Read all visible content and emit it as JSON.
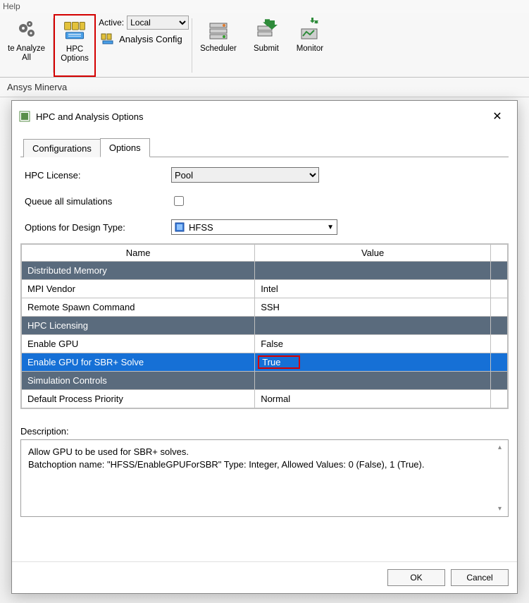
{
  "colors": {
    "highlight_border": "#d40000",
    "section_header_bg": "#5a6b7d",
    "section_header_text": "#ffffff",
    "selected_row_bg": "#1670d6",
    "selected_row_text": "#ffffff",
    "table_border": "#bfbfbf"
  },
  "menu_hint": "Help",
  "ribbon": {
    "analyze_all": "te Analyze\nAll",
    "hpc_options": "HPC\nOptions",
    "active_label": "Active:",
    "active_value": "Local",
    "analysis_config": "Analysis Config",
    "scheduler": "Scheduler",
    "submit": "Submit",
    "monitor": "Monitor"
  },
  "subtitle": "Ansys Minerva",
  "modal": {
    "title": "HPC and Analysis Options",
    "tabs": [
      "Configurations",
      "Options"
    ],
    "active_tab": 1,
    "hpc_license_label": "HPC License:",
    "hpc_license_value": "Pool",
    "queue_label": "Queue all simulations",
    "queue_checked": false,
    "design_type_label": "Options for Design Type:",
    "design_type_value": "HFSS",
    "table": {
      "col_name": "Name",
      "col_value": "Value",
      "rows": [
        {
          "kind": "section",
          "name": "Distributed Memory",
          "value": ""
        },
        {
          "kind": "row",
          "name": "MPI Vendor",
          "value": "Intel"
        },
        {
          "kind": "row",
          "name": "Remote Spawn Command",
          "value": "SSH"
        },
        {
          "kind": "section",
          "name": "HPC Licensing",
          "value": ""
        },
        {
          "kind": "row",
          "name": "Enable GPU",
          "value": "False"
        },
        {
          "kind": "row",
          "selected": true,
          "highlight_value": true,
          "name": "Enable GPU for SBR+ Solve",
          "value": "True"
        },
        {
          "kind": "section",
          "name": "Simulation Controls",
          "value": ""
        },
        {
          "kind": "row",
          "name": "Default Process Priority",
          "value": "Normal"
        }
      ]
    },
    "description_label": "Description:",
    "description_text": "Allow GPU to be used for SBR+ solves.\nBatchoption name: \"HFSS/EnableGPUForSBR\" Type: Integer, Allowed Values: 0 (False), 1 (True).",
    "ok": "OK",
    "cancel": "Cancel"
  }
}
